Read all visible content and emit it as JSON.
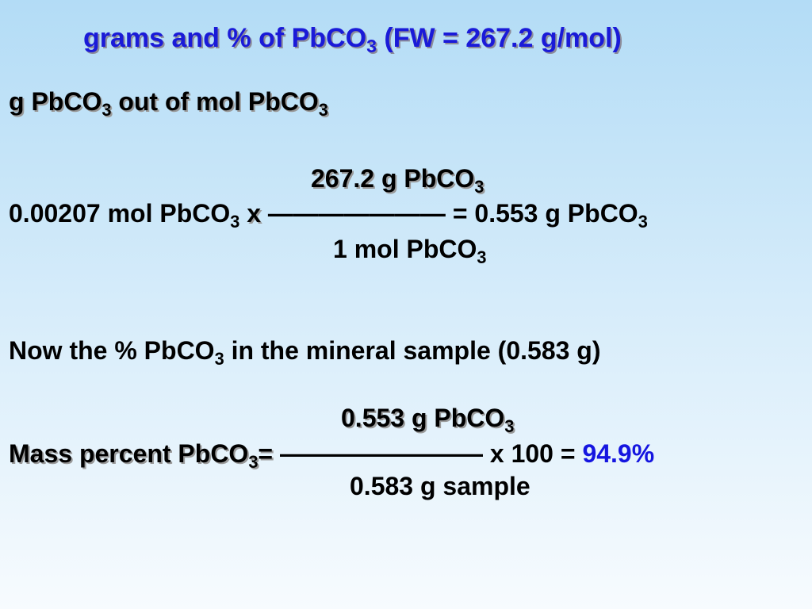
{
  "title": {
    "pre": "grams and % of PbCO",
    "sub": "3",
    "post": " (FW = 267.2 g/mol)"
  },
  "heading": {
    "p1": "g PbCO",
    "s1": "3",
    "p2": " out of mol PbCO",
    "s2": "3"
  },
  "calc1": {
    "numerator": {
      "text": "267.2 g PbCO",
      "sub": "3"
    },
    "lead": {
      "text": "0.00207 mol PbCO",
      "sub": "3"
    },
    "times": "x",
    "bar": "———————",
    "result": {
      "text": "= 0.553 g PbCO",
      "sub": "3"
    },
    "denominator": {
      "text": "1 mol PbCO",
      "sub": "3"
    }
  },
  "percent_intro": {
    "pre": "Now the % PbCO",
    "sub": "3",
    "post": " in the mineral sample (0.583 g)"
  },
  "calc2": {
    "numerator": {
      "text": "0.553 g PbCO",
      "sub": "3"
    },
    "lead": {
      "text": "Mass percent PbCO",
      "sub": "3",
      "eq": "="
    },
    "bar": "————————",
    "tail": "x 100 = ",
    "result": "94.9%",
    "denominator": "0.583 g sample"
  }
}
